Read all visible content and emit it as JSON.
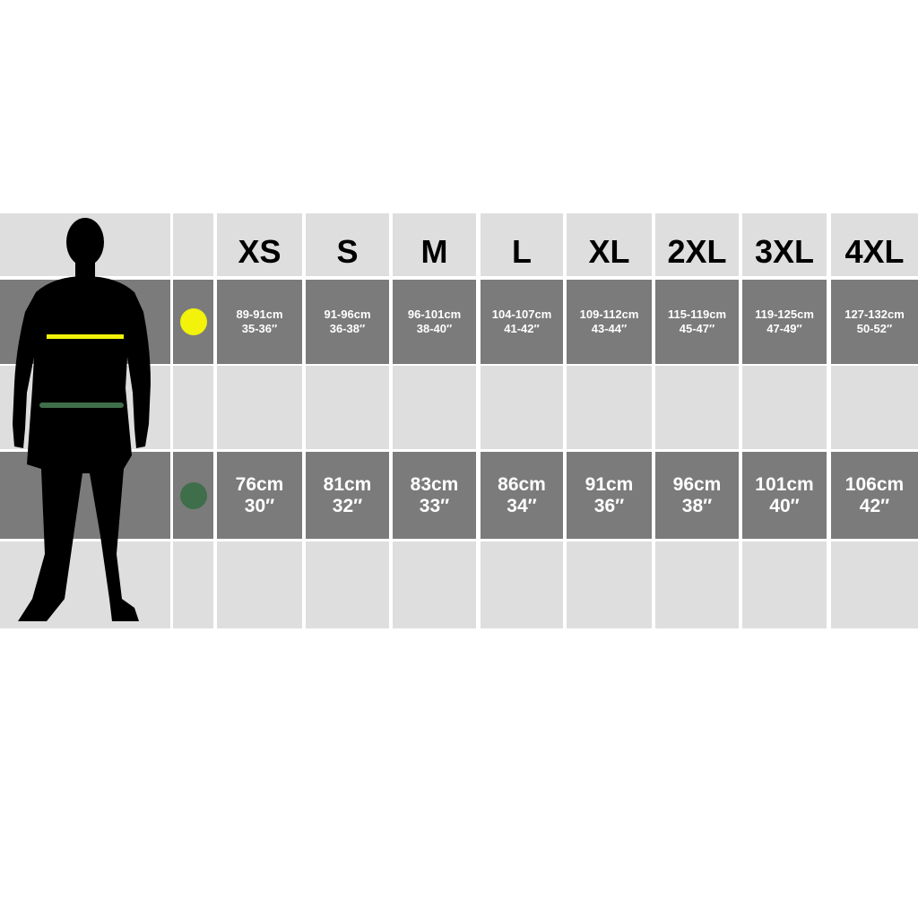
{
  "sizes": [
    "XS",
    "S",
    "M",
    "L",
    "XL",
    "2XL",
    "3XL",
    "4XL"
  ],
  "chest": {
    "color": "#f2f20a",
    "cm": [
      "89-91cm",
      "91-96cm",
      "96-101cm",
      "104-107cm",
      "109-112cm",
      "115-119cm",
      "119-125cm",
      "127-132cm"
    ],
    "in": [
      "35-36″",
      "36-38″",
      "38-40″",
      "41-42″",
      "43-44″",
      "45-47″",
      "47-49″",
      "50-52″"
    ]
  },
  "waist": {
    "color": "#3e6e4a",
    "cm": [
      "76cm",
      "81cm",
      "83cm",
      "86cm",
      "91cm",
      "96cm",
      "101cm",
      "106cm"
    ],
    "in": [
      "30″",
      "32″",
      "33″",
      "34″",
      "36″",
      "38″",
      "40″",
      "42″"
    ]
  },
  "colors": {
    "dark_row": "#7b7b7b",
    "light_row": "#dedede"
  }
}
